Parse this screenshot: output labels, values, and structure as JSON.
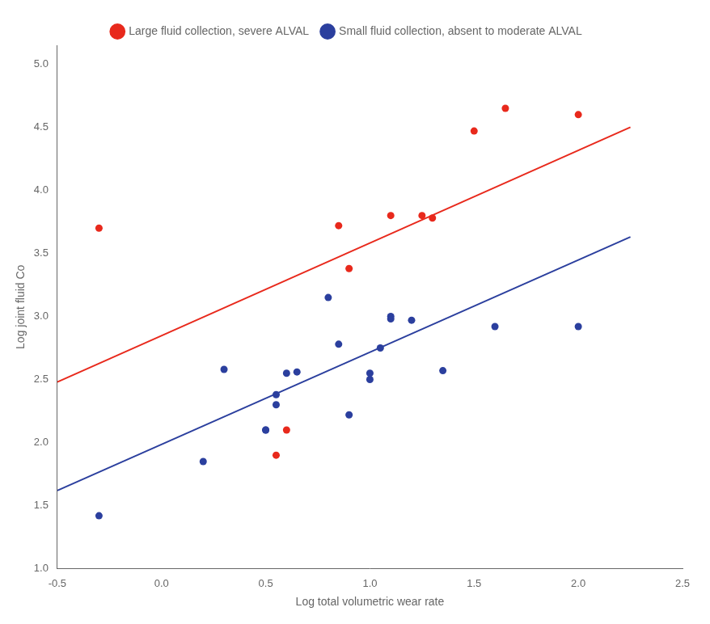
{
  "chart_data": {
    "type": "scatter",
    "xlabel": "Log total volumetric wear rate",
    "ylabel": "Log joint fluid Co",
    "xlim": [
      -0.5,
      2.5
    ],
    "ylim": [
      1.0,
      5.15
    ],
    "xticks": [
      -0.5,
      {
        "value": 0,
        "label": "0.0"
      },
      0.5,
      {
        "value": 1,
        "label": "1.0"
      },
      1.5,
      {
        "value": 2,
        "label": "2.0"
      },
      2.5
    ],
    "yticks": [
      {
        "value": 1,
        "label": "1.0"
      },
      1.5,
      {
        "value": 2,
        "label": "2.0"
      },
      2.5,
      {
        "value": 3,
        "label": "3.0"
      },
      3.5,
      {
        "value": 4,
        "label": "4.0"
      },
      4.5,
      {
        "value": 5,
        "label": "5.0"
      }
    ],
    "grid": false,
    "legend": "top",
    "series": [
      {
        "name": "Large fluid collection, severe ALVAL",
        "type": "scatter",
        "marker": "circle",
        "color": "#e8291c",
        "values": [
          [
            -0.3,
            3.7
          ],
          [
            0.55,
            1.9
          ],
          [
            0.6,
            2.1
          ],
          [
            0.85,
            3.72
          ],
          [
            0.9,
            3.38
          ],
          [
            1.1,
            3.8
          ],
          [
            1.25,
            3.8
          ],
          [
            1.3,
            3.78
          ],
          [
            1.5,
            4.47
          ],
          [
            1.65,
            4.65
          ],
          [
            2.0,
            4.6
          ]
        ]
      },
      {
        "name": "Small fluid collection, absent to moderate ALVAL",
        "type": "scatter",
        "marker": "circle",
        "color": "#2b3f9e",
        "values": [
          [
            -0.3,
            1.42
          ],
          [
            0.2,
            1.85
          ],
          [
            0.3,
            2.58
          ],
          [
            0.5,
            2.1
          ],
          [
            0.5,
            2.1
          ],
          [
            0.55,
            2.3
          ],
          [
            0.55,
            2.38
          ],
          [
            0.6,
            2.55
          ],
          [
            0.65,
            2.56
          ],
          [
            0.8,
            3.15
          ],
          [
            0.85,
            2.78
          ],
          [
            0.9,
            2.22
          ],
          [
            1.0,
            2.55
          ],
          [
            1.0,
            2.5
          ],
          [
            1.05,
            2.75
          ],
          [
            1.1,
            3.0
          ],
          [
            1.1,
            2.98
          ],
          [
            1.2,
            2.97
          ],
          [
            1.35,
            2.57
          ],
          [
            1.6,
            2.92
          ],
          [
            2.0,
            2.92
          ]
        ]
      },
      {
        "type": "line",
        "line_style": "solid",
        "color": "#e8291c",
        "values": [
          [
            -0.5,
            2.48
          ],
          [
            2.25,
            4.5
          ]
        ]
      },
      {
        "type": "line",
        "line_style": "solid",
        "color": "#2b3f9e",
        "values": [
          [
            -0.5,
            1.62
          ],
          [
            2.25,
            3.63
          ]
        ]
      }
    ]
  }
}
